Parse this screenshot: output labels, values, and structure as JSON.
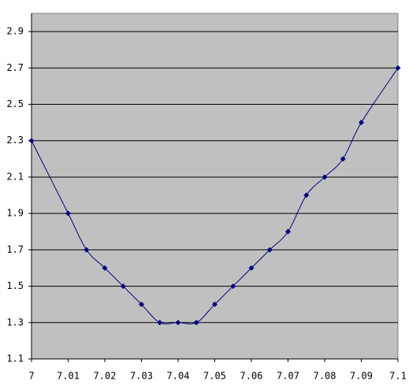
{
  "chart_data": {
    "type": "line",
    "x": [
      7,
      7.01,
      7.015,
      7.02,
      7.025,
      7.03,
      7.035,
      7.04,
      7.045,
      7.05,
      7.055,
      7.06,
      7.065,
      7.07,
      7.075,
      7.08,
      7.085,
      7.09,
      7.1
    ],
    "series": [
      {
        "color": "#000080",
        "values": [
          2.3,
          1.9,
          1.7,
          1.6,
          1.5,
          1.4,
          1.3,
          1.3,
          1.3,
          1.4,
          1.5,
          1.6,
          1.7,
          1.8,
          2.0,
          2.1,
          2.2,
          2.4,
          2.7
        ]
      }
    ],
    "xlim": [
      7,
      7.1
    ],
    "xticks": [
      7,
      7.01,
      7.02,
      7.03,
      7.04,
      7.05,
      7.06,
      7.07,
      7.08,
      7.09,
      7.1
    ],
    "ylim": [
      1.1,
      3.0
    ],
    "yticks": [
      1.1,
      1.3,
      1.5,
      1.7,
      1.9,
      2.1,
      2.3,
      2.5,
      2.7,
      2.9
    ],
    "grid": true,
    "plot_background": "#c0c0c0"
  }
}
